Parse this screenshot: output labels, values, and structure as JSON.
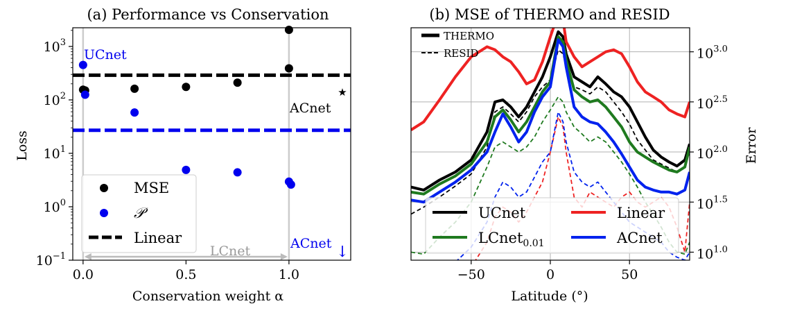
{
  "chart_data": [
    {
      "type": "scatter",
      "title": "(a) Performance vs Conservation",
      "xlabel": "Conservation weight α",
      "ylabel": "Loss",
      "yscale": "log",
      "xlim": [
        -0.05,
        1.3
      ],
      "ylim_exponent": [
        -1,
        3.35
      ],
      "x_ticks": [
        {
          "value": 0.0,
          "label": "0.0"
        },
        {
          "value": 0.5,
          "label": "0.5"
        },
        {
          "value": 1.0,
          "label": "1.0"
        }
      ],
      "y_ticks": [
        {
          "base": "10",
          "exp": "−1",
          "value": -1
        },
        {
          "base": "10",
          "exp": "0",
          "value": 0
        },
        {
          "base": "10",
          "exp": "1",
          "value": 1
        },
        {
          "base": "10",
          "exp": "2",
          "value": 2
        },
        {
          "base": "10",
          "exp": "3",
          "value": 3
        }
      ],
      "series": [
        {
          "name": "MSE",
          "color": "#000000",
          "marker": "circle",
          "points": [
            [
              0.0,
              155
            ],
            [
              0.01,
              150
            ],
            [
              0.25,
              162
            ],
            [
              0.5,
              175
            ],
            [
              0.75,
              210
            ],
            [
              1.0,
              390
            ],
            [
              1.0,
              2050
            ]
          ]
        },
        {
          "name": "𝒫",
          "color": "#0000ee",
          "marker": "circle",
          "points": [
            [
              0.0,
              450
            ],
            [
              0.01,
              125
            ],
            [
              0.25,
              58
            ],
            [
              0.5,
              4.9
            ],
            [
              0.75,
              4.4
            ],
            [
              1.0,
              2.95
            ],
            [
              1.01,
              2.6
            ]
          ]
        }
      ],
      "hlines": [
        {
          "name": "Linear",
          "color": "#000000",
          "value": 290
        },
        {
          "color": "#0000ee",
          "value": 27
        }
      ],
      "annotations": {
        "ucnet": "UCnet",
        "acnet_black": "ACnet",
        "star": "★",
        "lcnet": "LCnet",
        "acnet_blue": "ACnet",
        "arrow": "↓"
      },
      "legend": {
        "placement": "lower-left",
        "items": [
          "MSE",
          "𝒫",
          "Linear"
        ]
      }
    },
    {
      "type": "line",
      "title": "(b) MSE of THERMO and RESID",
      "xlabel": "Latitude (°)",
      "ylabel": "Error",
      "yscale": "log",
      "xlim": [
        -88,
        88
      ],
      "ylim_exponent": [
        0.92,
        3.24
      ],
      "x_ticks": [
        {
          "value": -50,
          "label": "−50"
        },
        {
          "value": 0,
          "label": "0"
        },
        {
          "value": 50,
          "label": "50"
        }
      ],
      "y_ticks": [
        {
          "base": "10",
          "exp": "1.0",
          "value": 1.0
        },
        {
          "base": "10",
          "exp": "1.5",
          "value": 1.5
        },
        {
          "base": "10",
          "exp": "2.0",
          "value": 2.0
        },
        {
          "base": "10",
          "exp": "2.5",
          "value": 2.5
        },
        {
          "base": "10",
          "exp": "3.0",
          "value": 3.0
        }
      ],
      "latitude": [
        -88,
        -80,
        -70,
        -60,
        -50,
        -40,
        -35,
        -30,
        -25,
        -20,
        -15,
        -10,
        -5,
        0,
        5,
        8,
        10,
        15,
        20,
        25,
        30,
        35,
        40,
        45,
        50,
        55,
        60,
        65,
        70,
        75,
        80,
        85,
        88
      ],
      "series": [
        {
          "name": "UCnet THERMO",
          "color": "#000000",
          "style": "solid",
          "log10_error": [
            1.65,
            1.62,
            1.72,
            1.8,
            1.92,
            2.2,
            2.5,
            2.52,
            2.45,
            2.35,
            2.45,
            2.6,
            2.75,
            2.95,
            3.2,
            3.15,
            2.98,
            2.75,
            2.7,
            2.65,
            2.75,
            2.68,
            2.6,
            2.55,
            2.45,
            2.3,
            2.15,
            2.02,
            1.95,
            1.9,
            1.86,
            1.92,
            2.08
          ]
        },
        {
          "name": "UCnet RESID",
          "color": "#000000",
          "style": "dashed",
          "log10_error": [
            1.38,
            1.45,
            1.55,
            1.66,
            1.78,
            2.05,
            2.4,
            2.45,
            2.38,
            2.3,
            2.4,
            2.55,
            2.65,
            2.72,
            3.02,
            2.98,
            2.85,
            2.65,
            2.62,
            2.58,
            2.65,
            2.6,
            2.5,
            2.4,
            2.28,
            2.12,
            2.02,
            1.92,
            1.88,
            1.84,
            1.8,
            1.85,
            2.0
          ]
        },
        {
          "name": "LCnet0.01 THERMO",
          "color": "#1f7a1f",
          "style": "solid",
          "log10_error": [
            1.6,
            1.58,
            1.68,
            1.76,
            1.88,
            2.1,
            2.35,
            2.42,
            2.32,
            2.2,
            2.3,
            2.45,
            2.6,
            2.7,
            3.15,
            3.1,
            2.92,
            2.62,
            2.55,
            2.5,
            2.52,
            2.45,
            2.35,
            2.25,
            2.1,
            2.0,
            1.95,
            1.9,
            1.86,
            1.82,
            1.8,
            1.85,
            2.05
          ]
        },
        {
          "name": "LCnet0.01 RESID",
          "color": "#1f7a1f",
          "style": "dashed",
          "log10_error": [
            1.0,
            0.98,
            1.15,
            1.3,
            1.5,
            1.85,
            2.05,
            2.1,
            2.05,
            2.0,
            2.05,
            2.15,
            2.3,
            2.42,
            2.55,
            2.5,
            2.4,
            2.25,
            2.18,
            2.1,
            2.15,
            2.1,
            2.0,
            1.9,
            1.78,
            1.65,
            1.5,
            1.38,
            1.25,
            1.1,
            1.0,
            0.98,
            1.1
          ]
        },
        {
          "name": "Linear THERMO",
          "color": "#ee2222",
          "style": "solid",
          "log10_error": [
            2.22,
            2.3,
            2.52,
            2.75,
            2.95,
            3.05,
            3.02,
            2.95,
            2.9,
            2.8,
            2.68,
            2.72,
            2.9,
            3.15,
            3.38,
            3.32,
            3.1,
            2.95,
            2.85,
            2.9,
            2.95,
            3.0,
            3.02,
            2.98,
            2.85,
            2.7,
            2.6,
            2.55,
            2.5,
            2.42,
            2.38,
            2.35,
            2.5
          ]
        },
        {
          "name": "Linear RESID",
          "color": "#ee2222",
          "style": "dashed",
          "log10_error": [
            0.5,
            0.55,
            0.6,
            0.7,
            0.85,
            1.1,
            1.35,
            1.45,
            1.4,
            1.3,
            1.4,
            1.55,
            1.7,
            2.0,
            2.35,
            2.25,
            2.0,
            1.55,
            1.45,
            1.6,
            1.55,
            1.5,
            1.45,
            1.55,
            1.6,
            1.5,
            1.45,
            1.5,
            1.55,
            1.45,
            1.25,
            1.0,
            1.5
          ]
        },
        {
          "name": "ACnet THERMO",
          "color": "#0022ee",
          "style": "solid",
          "log10_error": [
            1.52,
            1.5,
            1.6,
            1.7,
            1.82,
            2.0,
            2.2,
            2.38,
            2.25,
            2.1,
            2.2,
            2.4,
            2.55,
            2.65,
            3.12,
            3.05,
            2.85,
            2.45,
            2.35,
            2.3,
            2.28,
            2.2,
            2.1,
            1.98,
            1.85,
            1.72,
            1.65,
            1.62,
            1.6,
            1.6,
            1.58,
            1.62,
            1.8
          ]
        },
        {
          "name": "ACnet RESID",
          "color": "#0022ee",
          "style": "dashed",
          "log10_error": [
            0.6,
            0.62,
            0.75,
            0.9,
            1.05,
            1.3,
            1.55,
            1.7,
            1.65,
            1.55,
            1.6,
            1.75,
            1.9,
            2.0,
            2.4,
            2.3,
            2.1,
            1.8,
            1.7,
            1.65,
            1.7,
            1.6,
            1.5,
            1.4,
            1.3,
            1.25,
            1.2,
            1.15,
            1.1,
            1.0,
            0.95,
            0.92,
            1.0
          ]
        }
      ],
      "style_legend": [
        {
          "label": "THERMO",
          "style": "solid"
        },
        {
          "label": "RESID",
          "style": "dashed"
        }
      ],
      "legend": {
        "placement": "lower-center",
        "items": [
          {
            "label": "UCnet",
            "color": "#000000"
          },
          {
            "label": "Linear",
            "color": "#ee2222"
          },
          {
            "label": "LCnet",
            "sub": "0.01",
            "color": "#1f7a1f"
          },
          {
            "label": "ACnet",
            "color": "#0022ee"
          }
        ]
      }
    }
  ]
}
